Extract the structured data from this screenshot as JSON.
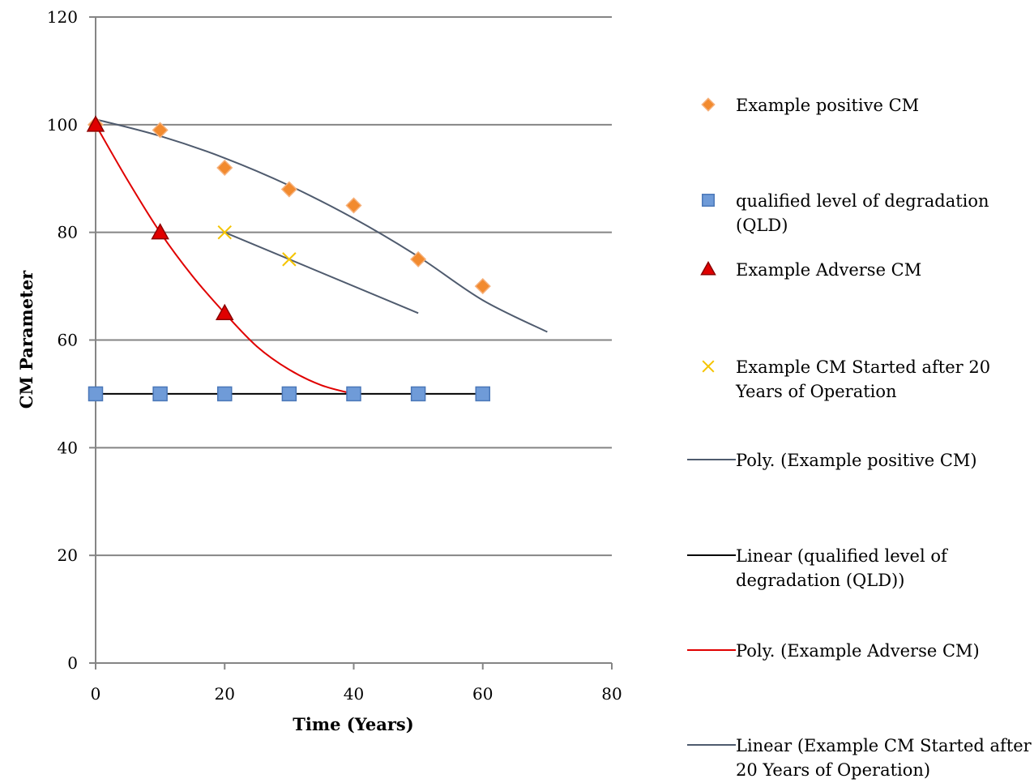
{
  "chart_data": {
    "type": "scatter",
    "title": "",
    "xlabel": "Time (Years)",
    "ylabel": "CM Parameter",
    "xlim": [
      0,
      80
    ],
    "ylim": [
      0,
      120
    ],
    "xticks": [
      0,
      20,
      40,
      60,
      80
    ],
    "yticks": [
      0,
      20,
      40,
      60,
      80,
      100,
      120
    ],
    "grid": "horizontal",
    "legend_position": "right",
    "series": [
      {
        "name": "Example positive CM",
        "marker": "diamond",
        "color": "#F28A2E",
        "x": [
          0,
          10,
          20,
          30,
          40,
          50,
          60
        ],
        "y": [
          100,
          99,
          92,
          88,
          85,
          75,
          70
        ]
      },
      {
        "name": "qualified level of degradation (QLD)",
        "marker": "square",
        "color": "#6F9BD8",
        "x": [
          0,
          10,
          20,
          30,
          40,
          50,
          60
        ],
        "y": [
          50,
          50,
          50,
          50,
          50,
          50,
          50
        ]
      },
      {
        "name": "Example Adverse CM",
        "marker": "triangle",
        "color": "#E00000",
        "x": [
          0,
          10,
          20
        ],
        "y": [
          100,
          80,
          65
        ]
      },
      {
        "name": "Example CM Started after 20 Years of Operation",
        "marker": "x",
        "color": "#F5C400",
        "x": [
          20,
          30
        ],
        "y": [
          80,
          75
        ]
      }
    ],
    "trendlines": [
      {
        "name": "Poly. (Example positive CM)",
        "type": "polynomial",
        "color": "#4F5B6E",
        "x": [
          0,
          10,
          20,
          30,
          40,
          50,
          60,
          70
        ],
        "y": [
          101,
          97.9,
          93.8,
          88.7,
          82.6,
          75.5,
          67.4,
          61.5
        ]
      },
      {
        "name": "Linear (qualified level of degradation (QLD))",
        "type": "linear",
        "color": "#000000",
        "x": [
          0,
          60
        ],
        "y": [
          50,
          50
        ]
      },
      {
        "name": "Poly. (Example Adverse CM)",
        "type": "polynomial",
        "color": "#E00000",
        "x": [
          0,
          5,
          10,
          15,
          20,
          25,
          30,
          35,
          40
        ],
        "y": [
          100,
          89.6,
          80,
          71.9,
          65,
          58.8,
          54.5,
          51.6,
          50
        ]
      },
      {
        "name": "Linear (Example CM Started after 20 Years of Operation)",
        "type": "linear",
        "color": "#4F5B6E",
        "x": [
          20,
          50
        ],
        "y": [
          80,
          65
        ]
      }
    ]
  }
}
